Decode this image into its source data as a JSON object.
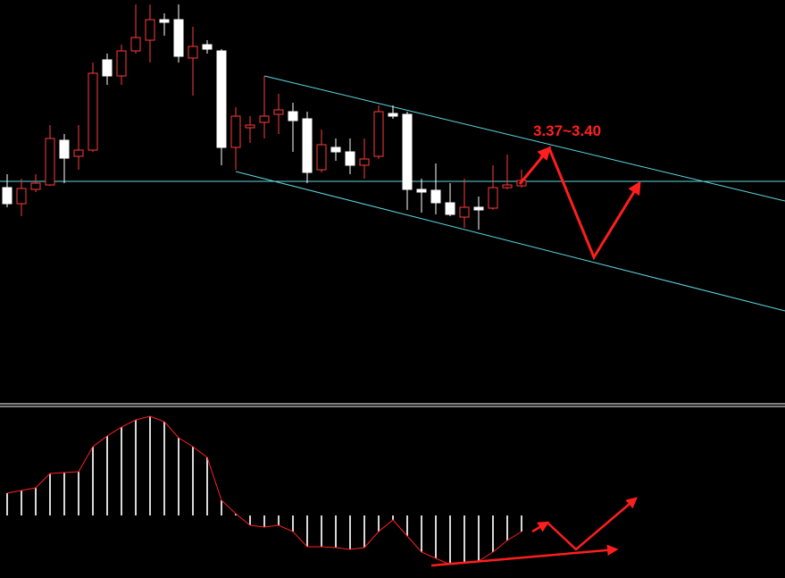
{
  "chart_data": [
    {
      "type": "candlestick",
      "annotations": [
        "3.37~3.40"
      ],
      "up_color": "#ff3c3c",
      "down_color": "#ffffff",
      "ylim": [
        2.78,
        3.68
      ],
      "open": [
        3.26,
        3.224,
        3.256,
        3.266,
        3.366,
        3.33,
        3.344,
        3.546,
        3.51,
        3.566,
        3.59,
        3.636,
        3.636,
        3.55,
        3.58,
        3.566,
        3.35,
        3.394,
        3.406,
        3.424,
        3.43,
        3.414,
        3.3,
        3.35,
        3.34,
        3.31,
        3.33,
        3.426,
        3.424,
        3.256,
        3.254,
        3.226,
        3.194,
        3.216,
        3.214,
        3.26,
        3.264
      ],
      "close": [
        3.224,
        3.258,
        3.27,
        3.37,
        3.326,
        3.344,
        3.516,
        3.51,
        3.566,
        3.596,
        3.636,
        3.63,
        3.554,
        3.576,
        3.57,
        3.35,
        3.42,
        3.4,
        3.42,
        3.434,
        3.41,
        3.294,
        3.356,
        3.34,
        3.31,
        3.324,
        3.43,
        3.42,
        3.256,
        3.25,
        3.226,
        3.2,
        3.216,
        3.21,
        3.26,
        3.266,
        3.276
      ],
      "high": [
        3.29,
        3.28,
        3.29,
        3.4,
        3.38,
        3.4,
        3.54,
        3.56,
        3.58,
        3.67,
        3.67,
        3.65,
        3.67,
        3.62,
        3.59,
        3.57,
        3.44,
        3.42,
        3.51,
        3.47,
        3.45,
        3.43,
        3.39,
        3.37,
        3.37,
        3.37,
        3.444,
        3.444,
        3.43,
        3.28,
        3.314,
        3.27,
        3.28,
        3.24,
        3.31,
        3.334,
        3.3
      ],
      "low": [
        3.216,
        3.196,
        3.25,
        3.264,
        3.27,
        3.3,
        3.34,
        3.49,
        3.49,
        3.56,
        3.54,
        3.6,
        3.54,
        3.466,
        3.56,
        3.31,
        3.3,
        3.36,
        3.37,
        3.38,
        3.34,
        3.27,
        3.294,
        3.32,
        3.29,
        3.28,
        3.324,
        3.414,
        3.21,
        3.204,
        3.2,
        3.196,
        3.17,
        3.166,
        3.21,
        3.256,
        3.26
      ]
    },
    {
      "type": "bar",
      "color": "#d8d8d8",
      "line_color": "#ff2020",
      "ylim": [
        -0.07,
        0.122
      ],
      "values": [
        0.025,
        0.028,
        0.031,
        0.047,
        0.048,
        0.049,
        0.077,
        0.089,
        0.099,
        0.107,
        0.111,
        0.105,
        0.087,
        0.077,
        0.065,
        0.017,
        0.002,
        -0.011,
        -0.013,
        -0.011,
        -0.018,
        -0.035,
        -0.035,
        -0.036,
        -0.038,
        -0.036,
        -0.018,
        -0.005,
        -0.023,
        -0.041,
        -0.048,
        -0.055,
        -0.053,
        -0.051,
        -0.041,
        -0.028,
        -0.018
      ]
    }
  ]
}
